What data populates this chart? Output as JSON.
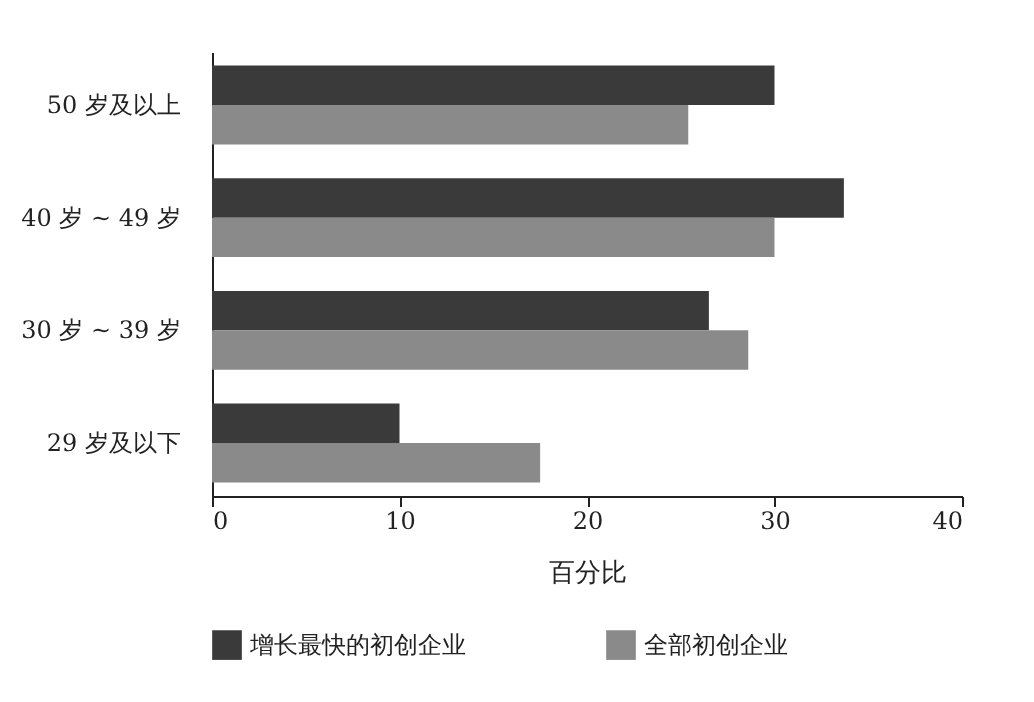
{
  "chart_data": {
    "type": "bar",
    "orientation": "horizontal",
    "xlabel": "百分比",
    "categories": [
      "50 岁及以上",
      "40 岁 ~ 49 岁",
      "30 岁 ~ 39 岁",
      "29 岁及以下"
    ],
    "series": [
      {
        "name": "增长最快的初创企业",
        "color": "#3a3a3a",
        "values": [
          30,
          33.7,
          26.5,
          10
        ]
      },
      {
        "name": "全部初创企业",
        "color": "#8a8a8a",
        "values": [
          25.4,
          30,
          28.6,
          17.5
        ]
      }
    ],
    "xlim": [
      0,
      40
    ],
    "xticks": [
      0,
      10,
      20,
      30,
      40
    ],
    "grid": false,
    "legend": "bottom"
  }
}
